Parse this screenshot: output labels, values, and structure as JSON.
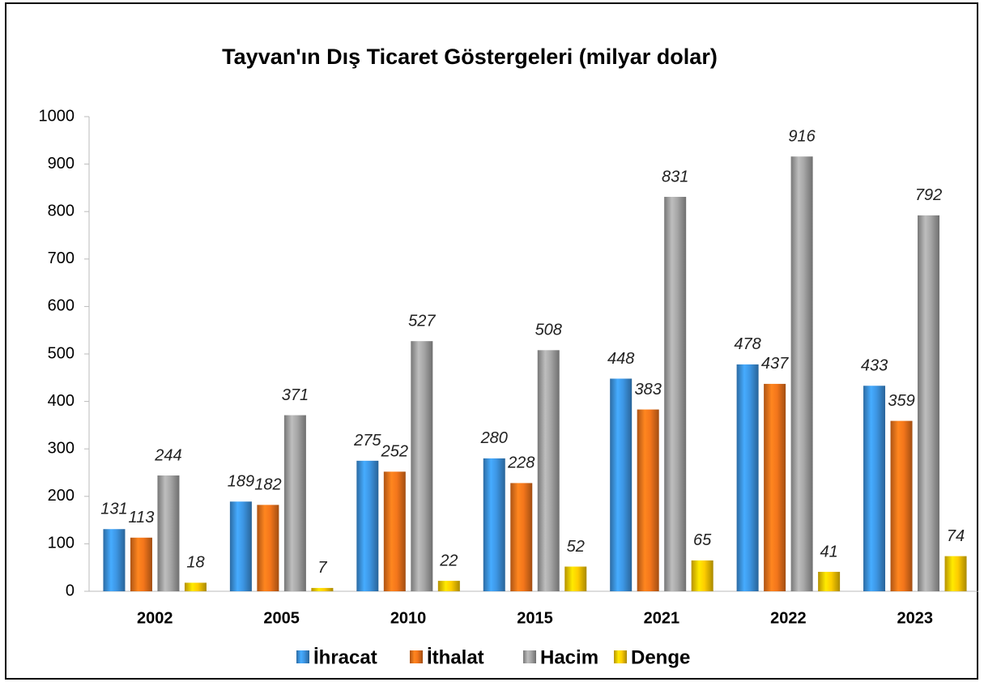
{
  "chart_data": {
    "type": "bar",
    "title": "Tayvan'ın Dış Ticaret Göstergeleri  (milyar dolar)",
    "categories": [
      "2002",
      "2005",
      "2010",
      "2015",
      "2021",
      "2022",
      "2023"
    ],
    "series": [
      {
        "name": "İhracat",
        "color": "#3a8fd9",
        "values": [
          131,
          189,
          275,
          280,
          448,
          478,
          433
        ]
      },
      {
        "name": "İthalat",
        "color": "#e8701a",
        "values": [
          113,
          182,
          252,
          228,
          383,
          437,
          359
        ]
      },
      {
        "name": "Hacim",
        "color": "#9e9e9e",
        "values": [
          244,
          371,
          527,
          508,
          831,
          916,
          792
        ]
      },
      {
        "name": "Denge",
        "color": "#f2c300",
        "values": [
          18,
          7,
          22,
          52,
          65,
          41,
          74
        ]
      }
    ],
    "ylim": [
      0,
      1000
    ],
    "yticks": [
      0,
      100,
      200,
      300,
      400,
      500,
      600,
      700,
      800,
      900,
      1000
    ],
    "grid": false,
    "legend": "bottom"
  }
}
